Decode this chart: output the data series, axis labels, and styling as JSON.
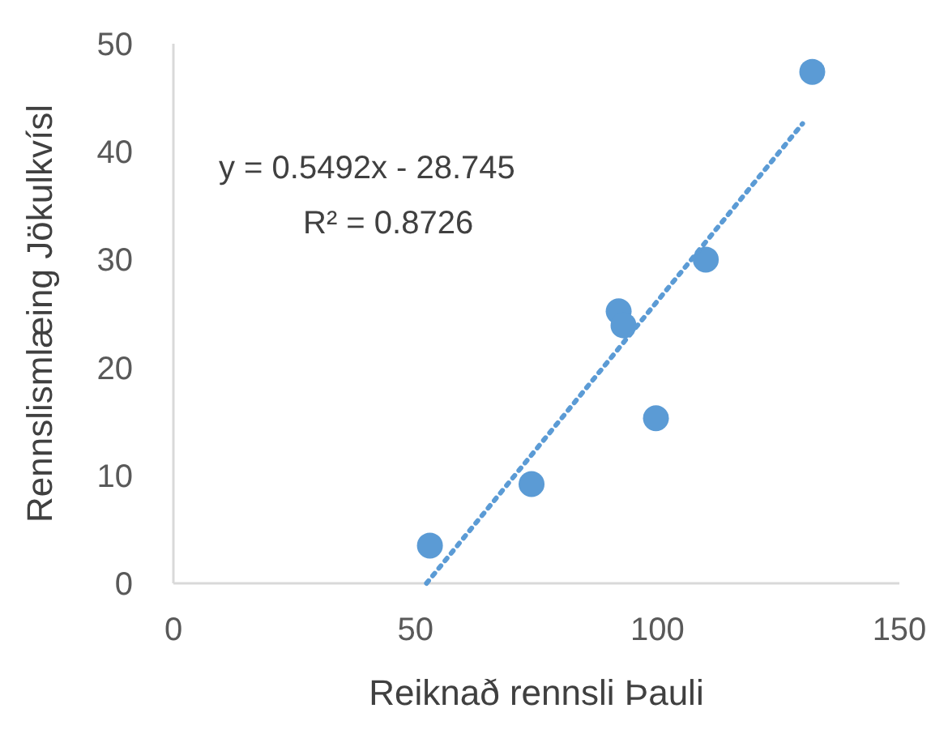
{
  "chart_data": {
    "type": "scatter",
    "xlabel": "Reiknað rennsli Þauli",
    "ylabel": "Rennslismlæing Jökulkvísl",
    "annotations": [
      "y = 0.5492x - 28.745",
      "R² = 0.8726"
    ],
    "xlim": [
      0,
      150
    ],
    "xticks": [
      0,
      50,
      100,
      150
    ],
    "ylim": [
      0,
      50
    ],
    "yticks": [
      0,
      10,
      20,
      30,
      40,
      50
    ],
    "grid": false,
    "series": [
      {
        "color": "#5b9bd5",
        "marker": "circle",
        "x": [
          53,
          74,
          92,
          93,
          99.7,
          110,
          132
        ],
        "values": [
          3.5,
          9.2,
          25.2,
          23.9,
          15.3,
          30,
          47.4
        ]
      },
      {
        "type": "line",
        "color": "#5b9bd5",
        "line_style": "dotted",
        "x": [
          52.3,
          130
        ],
        "values": [
          0,
          42.6
        ]
      }
    ]
  }
}
